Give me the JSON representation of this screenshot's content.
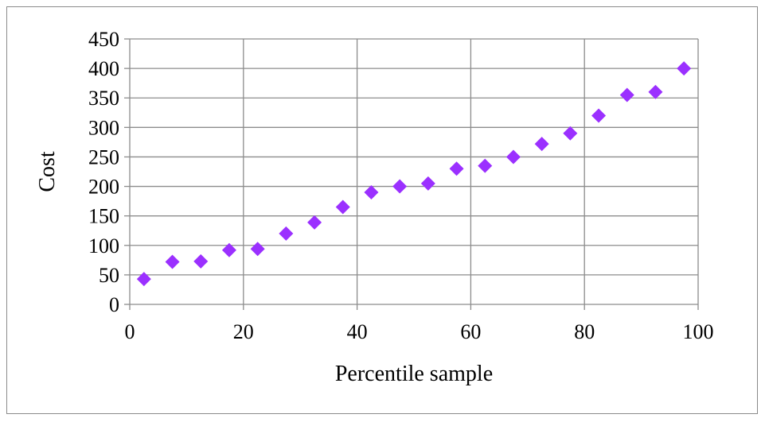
{
  "chart_data": {
    "type": "scatter",
    "title": "",
    "xlabel": "Percentile sample",
    "ylabel": "Cost",
    "xlim": [
      0,
      100
    ],
    "ylim": [
      0,
      450
    ],
    "x_ticks": [
      0,
      20,
      40,
      60,
      80,
      100
    ],
    "y_ticks": [
      0,
      50,
      100,
      150,
      200,
      250,
      300,
      350,
      400,
      450
    ],
    "x_tick_labels": [
      "0",
      "20",
      "40",
      "60",
      "80",
      "100"
    ],
    "y_tick_labels": [
      "0",
      "50",
      "100",
      "150",
      "200",
      "250",
      "300",
      "350",
      "400",
      "450"
    ],
    "grid": true,
    "legend": "none",
    "marker": "diamond",
    "marker_color": "#9b30ff",
    "series": [
      {
        "x": [
          2.5,
          7.5,
          12.5,
          17.5,
          22.5,
          27.5,
          32.5,
          37.5,
          42.5,
          47.5,
          52.5,
          57.5,
          62.5,
          67.5,
          72.5,
          77.5,
          82.5,
          87.5,
          92.5,
          97.5
        ],
        "y": [
          43,
          72,
          73,
          92,
          94,
          120,
          139,
          165,
          190,
          200,
          205,
          230,
          235,
          250,
          272,
          290,
          320,
          355,
          360,
          400
        ]
      }
    ]
  }
}
